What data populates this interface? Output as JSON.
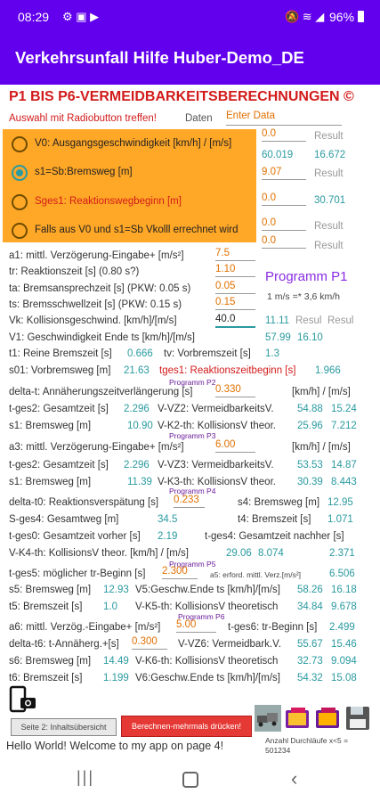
{
  "status": {
    "time": "08:29",
    "battery": "96%"
  },
  "appbar": {
    "title": "Verkehrsunfall Hilfe Huber-Demo_DE"
  },
  "main": {
    "heading": "P1 BIS P6-VERMEIDBARKEITSBERECHNUNGEN ©",
    "radio_hint": "Auswahl mit Radiobutton treffen!",
    "tab_daten": "Daten",
    "tab_enter": "Enter Data",
    "radios": [
      {
        "label": "V0: Ausgangsgeschwindigkeit [km/h] / [m/s]",
        "selected": false
      },
      {
        "label": "s1=Sb:Bremsweg [m]",
        "selected": true
      },
      {
        "label": "Sges1: Reaktionswegbeginn [m]",
        "selected": false
      },
      {
        "label": "Falls aus V0 und s1=Sb Vkolll errechnet wird",
        "selected": false
      }
    ],
    "top_fields": [
      {
        "value": "0.0",
        "r1": "",
        "r2": "Result"
      },
      {
        "value": "",
        "r1": "60.019",
        "r2": "16.672"
      },
      {
        "value": "9.07",
        "r1": "",
        "r2": "Result"
      },
      {
        "value": "0.0",
        "r1": "",
        "r2": "30.701"
      },
      {
        "value": "0.0",
        "r1": "",
        "r2": "Result"
      },
      {
        "value": "0.0",
        "r1": "",
        "r2": "Result"
      }
    ],
    "p1": {
      "a1_label": "a1: mittl. Verzögerung-Eingabe+ [m/s²]",
      "a1": "7.5",
      "tr_label": "tr: Reaktionszeit [s] (0.80 s?)",
      "tr": "1.10",
      "ta_label": "ta: Bremsansprechzeit [s] (PKW: 0.05 s)",
      "ta": "0.05",
      "ts_label": "ts: Bremsschwellzeit [s] (PKW: 0.15 s)",
      "ts": "0.15",
      "vk_label": "Vk: Kollisionsgeschwind. [km/h]/[m/s]",
      "vk": "40.0",
      "program": "Programm P1",
      "conv": "1 m/s =* 3,6 km/h",
      "vk_r1": "11.11",
      "vk_r2": "Resul",
      "vk_r3": "Resul",
      "v1_label": "V1: Geschwindigkeit Ende ts [km/h]/[m/s]",
      "v1_a": "57.99",
      "v1_b": "16.10",
      "t1_label": "t1: Reine Bremszeit [s]",
      "t1": "0.666",
      "tv_label": "tv: Vorbremszeit [s]",
      "tv": "1.3",
      "s01_label": "s01: Vorbremsweg [m]",
      "s01": "21.63",
      "tges1_label": "tges1: Reaktionszeitbeginn [s]",
      "tges1": "1.966"
    },
    "p2": {
      "prog": "Programm P2",
      "dt_label": "delta-t: Annäherungszeitverlängerung [s]",
      "dt": "0.330",
      "unit": "[km/h] / [m/s]",
      "tges2_label": "t-ges2: Gesamtzeit [s]",
      "tges2": "2.296",
      "vz2_label": "V-VZ2: VermeidbarkeitsV.",
      "vz2_a": "54.88",
      "vz2_b": "15.24",
      "s1_label": "s1: Bremsweg [m]",
      "s1": "10.90",
      "vk2_label": "V-K2-th: KollisionsV theor.",
      "vk2_a": "25.96",
      "vk2_b": "7.212"
    },
    "p3": {
      "prog": "Programm P3",
      "a3_label": "a3: mittl. Verzögerung-Eingabe+ [m/s²]",
      "a3": "6.00",
      "unit": "[km/h] / [m/s]",
      "tges2_label": "t-ges2: Gesamtzeit [s]",
      "tges2": "2.296",
      "vz3_label": "V-VZ3: VermeidbarkeitsV.",
      "vz3_a": "53.53",
      "vz3_b": "14.87",
      "s1_label": "s1: Bremsweg [m]",
      "s1": "11.39",
      "vk3_label": "V-K3-th: KollisionsV theor.",
      "vk3_a": "30.39",
      "vk3_b": "8.443"
    },
    "p4": {
      "prog": "Programm P4",
      "dt0_label": "delta-t0: Reaktionsverspätung [s]",
      "dt0": "0.233",
      "s4_label": "s4: Bremsweg [m]",
      "s4": "12.95",
      "sges4_label": "S-ges4: Gesamtweg [m]",
      "sges4": "34.5",
      "t4_label": "t4: Bremszeit [s]",
      "t4": "1.071",
      "tges0_label": "t-ges0: Gesamtzeit vorher [s]",
      "tges0": "2.19",
      "tges4_label": "t-ges4: Gesamtzeit nachher [s]",
      "vk4_label": "V-K4-th: KollisionsV theor. [km/h] / [m/s]",
      "vk4_a": "29.06",
      "vk4_b": "8.074",
      "vk4_c": "2.371"
    },
    "p5": {
      "prog": "Programm P5",
      "tges5_label": "t-ges5: möglicher tr-Beginn [s]",
      "tges5": "2.300",
      "a5_label": "a5: erford. mittl. Verz.[m/s²]",
      "a5": "6.506",
      "s5_label": "s5: Bremsweg [m]",
      "s5": "12.93",
      "v5_label": "V5:Geschw.Ende ts [km/h]/[m/s]",
      "v5_a": "58.26",
      "v5_b": "16.18",
      "t5_label": "t5: Bremszeit [s]",
      "t5": "1.0",
      "vk5_label": "V-K5-th: KollisionsV theoretisch",
      "vk5_a": "34.84",
      "vk5_b": "9.678"
    },
    "p6": {
      "prog": "Programm P6",
      "a6_label": "a6: mittl. Verzög.-Eingabe+ [m/s²]",
      "a6": "5.00",
      "tges6_label": "t-ges6: tr-Beginn [s]",
      "tges6": "2.499",
      "dt6_label": "delta-t6: t-Annäherg.+[s]",
      "dt6": "0.300",
      "vz6_label": "V-VZ6: Vermeidbark.V.",
      "vz6_a": "55.67",
      "vz6_b": "15.46",
      "s6_label": "s6: Bremsweg [m]",
      "s6": "14.49",
      "vk6_label": "V-K6-th: KollisionsV theoretisch",
      "vk6_a": "32.73",
      "vk6_b": "9.094",
      "t6_label": "t6: Bremszeit [s]",
      "t6": "1.199",
      "v6_label": "V6:Geschw.Ende ts [km/h]/[m/s]",
      "v6_a": "54.32",
      "v6_b": "15.08"
    },
    "bottom": {
      "btn_page2": "Seite 2: Inhaltsübersicht",
      "btn_calc": "Berechnen-mehrmals drücken!",
      "runs": "Anzahl Durchläufe x<5 =",
      "runs_val": "501234",
      "hello": "Hello World! Welcome to my app on page 4!"
    }
  },
  "colors": {
    "primary": "#6200ee",
    "orange": "#ffa726",
    "teal": "#2a9aa0",
    "red": "#d21b1b"
  }
}
